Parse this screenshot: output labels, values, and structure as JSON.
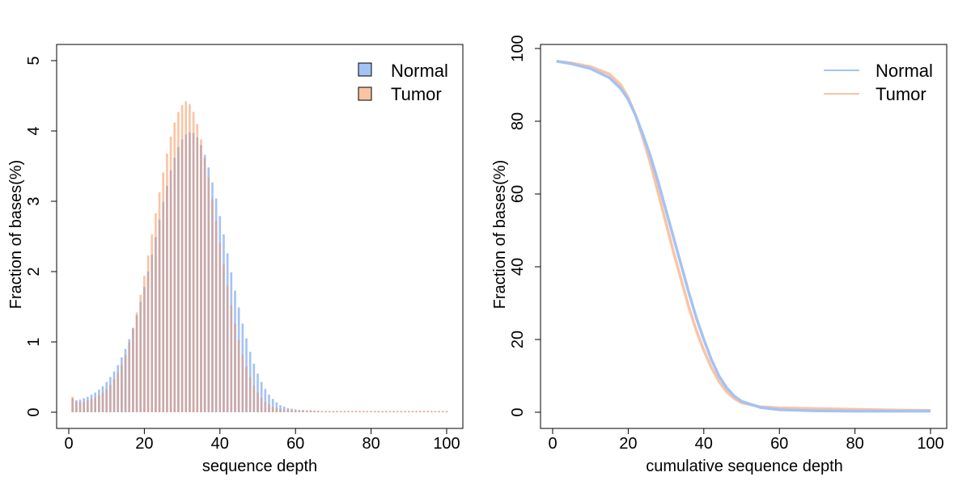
{
  "colors": {
    "normal": "#a4c2f4",
    "tumor": "#f9c4a4",
    "overlap": "#c9a8a8"
  },
  "chart_data": [
    {
      "type": "bar",
      "xlabel": "sequence depth",
      "ylabel": "Fraction of bases(%)",
      "xlim": [
        0,
        100
      ],
      "ylim": [
        0,
        5
      ],
      "xticks": [
        "0",
        "20",
        "40",
        "60",
        "80",
        "100"
      ],
      "yticks": [
        "0",
        "1",
        "2",
        "3",
        "4",
        "5"
      ],
      "legend": {
        "position": "top-right",
        "entries": [
          "Normal",
          "Tumor"
        ]
      },
      "x": [
        1,
        2,
        3,
        4,
        5,
        6,
        7,
        8,
        9,
        10,
        11,
        12,
        13,
        14,
        15,
        16,
        17,
        18,
        19,
        20,
        21,
        22,
        23,
        24,
        25,
        26,
        27,
        28,
        29,
        30,
        31,
        32,
        33,
        34,
        35,
        36,
        37,
        38,
        39,
        40,
        41,
        42,
        43,
        44,
        45,
        46,
        47,
        48,
        49,
        50,
        51,
        52,
        53,
        54,
        55,
        56,
        57,
        58,
        59,
        60,
        61,
        62,
        63,
        64,
        65,
        66,
        67,
        68,
        69,
        70,
        71,
        72,
        73,
        74,
        75,
        76,
        77,
        78,
        79,
        80,
        81,
        82,
        83,
        84,
        85,
        86,
        87,
        88,
        89,
        90,
        91,
        92,
        93,
        94,
        95,
        96,
        97,
        98,
        99,
        100
      ],
      "series": [
        {
          "name": "Normal",
          "values": [
            0.2,
            0.17,
            0.18,
            0.2,
            0.22,
            0.25,
            0.28,
            0.32,
            0.37,
            0.43,
            0.5,
            0.58,
            0.67,
            0.78,
            0.9,
            1.04,
            1.2,
            1.38,
            1.57,
            1.78,
            2.0,
            2.24,
            2.49,
            2.74,
            2.99,
            3.22,
            3.44,
            3.62,
            3.77,
            3.88,
            3.95,
            3.98,
            3.97,
            3.91,
            3.8,
            3.66,
            3.48,
            3.27,
            3.04,
            2.79,
            2.53,
            2.26,
            1.99,
            1.73,
            1.49,
            1.26,
            1.05,
            0.86,
            0.69,
            0.55,
            0.43,
            0.33,
            0.25,
            0.19,
            0.14,
            0.1,
            0.08,
            0.06,
            0.05,
            0.04,
            0.03,
            0.03,
            0.02,
            0.02,
            0.02,
            0.02,
            0.01,
            0.01,
            0.01,
            0.01,
            0.01,
            0.01,
            0.01,
            0.01,
            0.01,
            0.01,
            0.01,
            0.01,
            0.01,
            0.01,
            0.01,
            0.01,
            0.01,
            0.01,
            0.01,
            0.01,
            0.01,
            0.01,
            0.01,
            0.01,
            0.01,
            0.01,
            0.01,
            0.01,
            0.01,
            0.01,
            0.01,
            0.01,
            0.01,
            0.01
          ]
        },
        {
          "name": "Tumor",
          "values": [
            0.22,
            0.15,
            0.14,
            0.15,
            0.17,
            0.19,
            0.21,
            0.24,
            0.28,
            0.33,
            0.39,
            0.47,
            0.56,
            0.67,
            0.82,
            0.99,
            1.19,
            1.42,
            1.67,
            1.94,
            2.23,
            2.53,
            2.83,
            3.13,
            3.41,
            3.68,
            3.92,
            4.12,
            4.27,
            4.37,
            4.42,
            4.38,
            4.27,
            4.1,
            3.88,
            3.62,
            3.34,
            3.03,
            2.72,
            2.41,
            2.1,
            1.8,
            1.52,
            1.26,
            1.03,
            0.82,
            0.65,
            0.5,
            0.38,
            0.28,
            0.21,
            0.15,
            0.11,
            0.08,
            0.06,
            0.05,
            0.04,
            0.04,
            0.03,
            0.03,
            0.03,
            0.03,
            0.03,
            0.03,
            0.02,
            0.02,
            0.02,
            0.02,
            0.02,
            0.02,
            0.02,
            0.02,
            0.02,
            0.02,
            0.02,
            0.02,
            0.02,
            0.02,
            0.02,
            0.02,
            0.02,
            0.02,
            0.02,
            0.02,
            0.02,
            0.02,
            0.02,
            0.02,
            0.02,
            0.02,
            0.02,
            0.02,
            0.02,
            0.02,
            0.02,
            0.02,
            0.02,
            0.02,
            0.02,
            0.02
          ]
        }
      ]
    },
    {
      "type": "line",
      "xlabel": "cumulative sequence depth",
      "ylabel": "Fraction of bases(%)",
      "xlim": [
        0,
        100
      ],
      "ylim": [
        0,
        100
      ],
      "xticks": [
        "0",
        "20",
        "40",
        "60",
        "80",
        "100"
      ],
      "yticks": [
        "0",
        "20",
        "40",
        "60",
        "80",
        "100"
      ],
      "legend": {
        "position": "top-right",
        "entries": [
          "Normal",
          "Tumor"
        ]
      },
      "x": [
        1,
        5,
        10,
        15,
        18,
        20,
        22,
        24,
        26,
        28,
        30,
        32,
        34,
        36,
        38,
        40,
        42,
        44,
        46,
        48,
        50,
        55,
        60,
        70,
        80,
        90,
        100
      ],
      "series": [
        {
          "name": "Normal",
          "values": [
            96.5,
            95.8,
            94.5,
            92.0,
            89.0,
            86.0,
            81.5,
            76.0,
            70.0,
            63.0,
            55.5,
            48.0,
            40.5,
            33.0,
            26.0,
            20.0,
            14.5,
            10.0,
            6.8,
            4.5,
            3.0,
            1.3,
            0.7,
            0.4,
            0.3,
            0.3,
            0.3
          ]
        },
        {
          "name": "Tumor",
          "values": [
            96.5,
            96.0,
            95.0,
            93.0,
            90.0,
            86.5,
            81.5,
            75.0,
            68.0,
            60.0,
            52.0,
            44.0,
            36.5,
            29.0,
            22.5,
            17.0,
            12.3,
            8.5,
            5.7,
            3.8,
            2.6,
            1.5,
            1.2,
            1.0,
            0.8,
            0.6,
            0.5
          ]
        }
      ]
    }
  ]
}
